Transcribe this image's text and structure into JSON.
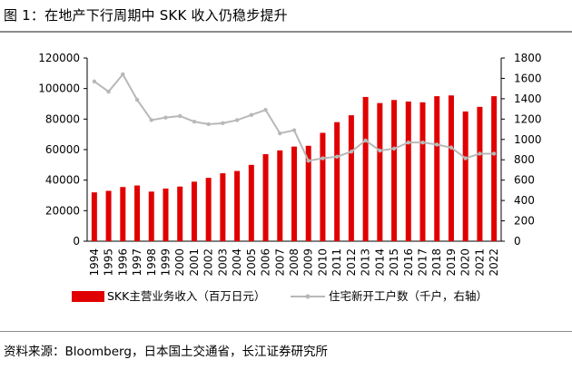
{
  "title": {
    "label": "图 1：",
    "text": "在地产下行周期中 SKK 收入仍稳步提升"
  },
  "chart_data": {
    "type": "bar+line",
    "categories": [
      "1994",
      "1995",
      "1996",
      "1997",
      "1998",
      "1999",
      "2000",
      "2001",
      "2002",
      "2003",
      "2004",
      "2005",
      "2006",
      "2007",
      "2008",
      "2009",
      "2010",
      "2011",
      "2012",
      "2013",
      "2014",
      "2015",
      "2016",
      "2017",
      "2018",
      "2019",
      "2020",
      "2021",
      "2022"
    ],
    "series": [
      {
        "name": "SKK主营业务收入（百万日元）",
        "type": "bar",
        "axis": "left",
        "color": "#e00000",
        "values": [
          32000,
          33000,
          35500,
          36500,
          32500,
          34500,
          35800,
          39000,
          41500,
          44500,
          46000,
          50000,
          57000,
          59500,
          62000,
          62500,
          71000,
          78000,
          82500,
          94500,
          90500,
          92500,
          91500,
          91000,
          95000,
          95500,
          85000,
          88000,
          95000
        ]
      },
      {
        "name": "住宅新开工户数（千户，右轴）",
        "type": "line",
        "axis": "right",
        "color": "#b8b8b8",
        "values": [
          1570,
          1470,
          1640,
          1390,
          1190,
          1215,
          1230,
          1175,
          1150,
          1160,
          1190,
          1240,
          1290,
          1060,
          1090,
          790,
          815,
          830,
          880,
          990,
          890,
          910,
          970,
          970,
          950,
          920,
          815,
          860,
          860
        ]
      }
    ],
    "left_axis": {
      "ylim": [
        0,
        120000
      ],
      "ticks": [
        "0",
        "20000",
        "40000",
        "60000",
        "80000",
        "100000",
        "120000"
      ]
    },
    "right_axis": {
      "ylim": [
        0,
        1800
      ],
      "ticks": [
        "0",
        "200",
        "400",
        "600",
        "800",
        "1000",
        "1200",
        "1400",
        "1600",
        "1800"
      ]
    },
    "legend_position": "bottom"
  },
  "source": "资料来源：Bloomberg，日本国土交通省，长江证券研究所"
}
